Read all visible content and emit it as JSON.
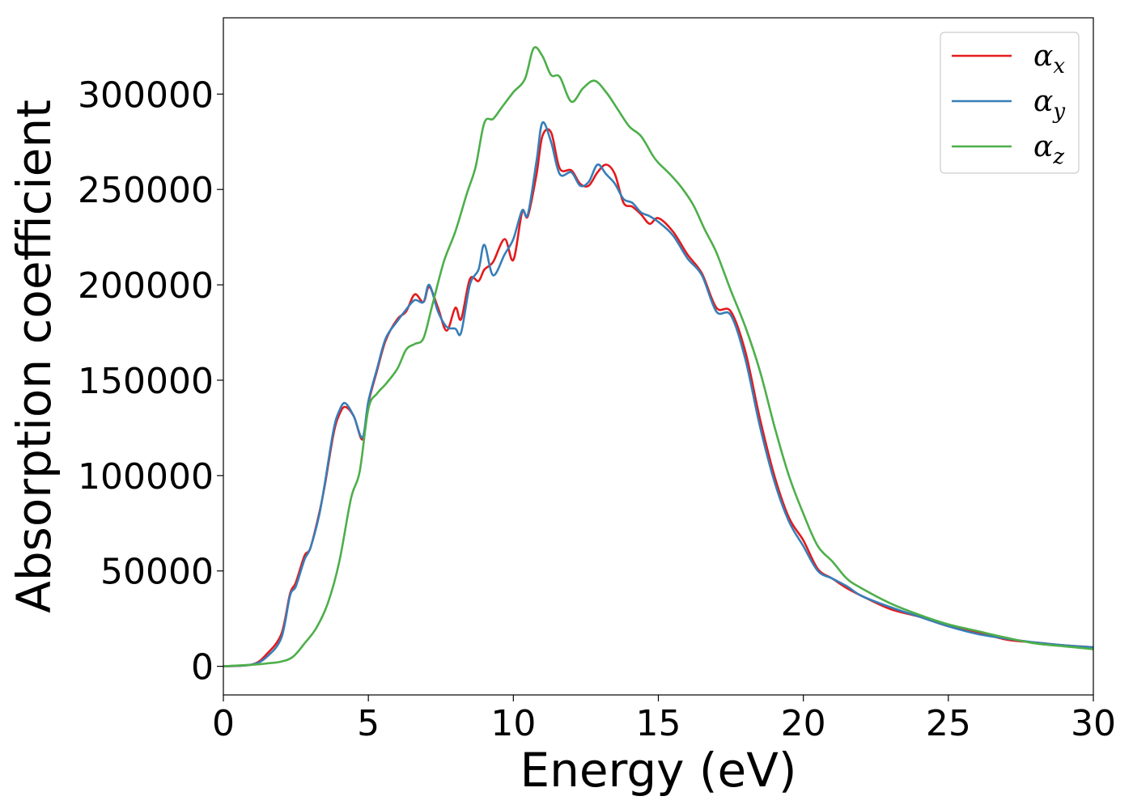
{
  "chart_data": {
    "type": "line",
    "title": "",
    "xlabel": "Energy (eV)",
    "ylabel": "Absorption coefficient",
    "xlim": [
      0,
      30
    ],
    "ylim": [
      -15000,
      340000
    ],
    "xticks": [
      0,
      5,
      10,
      15,
      20,
      25,
      30
    ],
    "xtick_labels": [
      "0",
      "5",
      "10",
      "15",
      "20",
      "25",
      "30"
    ],
    "yticks": [
      0,
      50000,
      100000,
      150000,
      200000,
      250000,
      300000
    ],
    "ytick_labels": [
      "0",
      "50000",
      "100000",
      "150000",
      "200000",
      "250000",
      "300000"
    ],
    "grid": false,
    "legend_position": "top-right",
    "series": [
      {
        "name": "αx",
        "symbol": "α",
        "subscript": "x",
        "color": "#e41a1c",
        "points": [
          [
            0,
            0
          ],
          [
            1,
            1000
          ],
          [
            1.5,
            6500
          ],
          [
            2,
            17000
          ],
          [
            2.3,
            38000
          ],
          [
            2.5,
            44000
          ],
          [
            2.8,
            58000
          ],
          [
            3,
            62000
          ],
          [
            3.3,
            80000
          ],
          [
            3.5,
            95000
          ],
          [
            3.8,
            122000
          ],
          [
            4,
            132000
          ],
          [
            4.2,
            136000
          ],
          [
            4.5,
            131000
          ],
          [
            4.8,
            119000
          ],
          [
            5,
            138000
          ],
          [
            5.3,
            155000
          ],
          [
            5.6,
            171000
          ],
          [
            6,
            182000
          ],
          [
            6.3,
            186000
          ],
          [
            6.6,
            195000
          ],
          [
            6.9,
            191000
          ],
          [
            7.1,
            199000
          ],
          [
            7.4,
            188000
          ],
          [
            7.7,
            176000
          ],
          [
            8,
            188000
          ],
          [
            8.2,
            182000
          ],
          [
            8.5,
            203000
          ],
          [
            8.8,
            202000
          ],
          [
            9,
            208000
          ],
          [
            9.3,
            212000
          ],
          [
            9.7,
            224000
          ],
          [
            10,
            213000
          ],
          [
            10.3,
            238000
          ],
          [
            10.5,
            236000
          ],
          [
            10.8,
            258000
          ],
          [
            11,
            278000
          ],
          [
            11.3,
            280000
          ],
          [
            11.6,
            261000
          ],
          [
            12,
            260000
          ],
          [
            12.3,
            253000
          ],
          [
            12.6,
            252000
          ],
          [
            12.9,
            259000
          ],
          [
            13.2,
            263000
          ],
          [
            13.5,
            258000
          ],
          [
            13.8,
            243000
          ],
          [
            14.1,
            241000
          ],
          [
            14.4,
            237000
          ],
          [
            14.7,
            232000
          ],
          [
            15,
            235000
          ],
          [
            15.5,
            228000
          ],
          [
            16,
            216000
          ],
          [
            16.5,
            206000
          ],
          [
            17,
            188000
          ],
          [
            17.5,
            186000
          ],
          [
            18,
            165000
          ],
          [
            18.5,
            130000
          ],
          [
            19,
            100000
          ],
          [
            19.5,
            78000
          ],
          [
            20,
            66000
          ],
          [
            20.5,
            51000
          ],
          [
            21,
            46000
          ],
          [
            21.5,
            41000
          ],
          [
            22,
            37000
          ],
          [
            23,
            30000
          ],
          [
            24,
            26000
          ],
          [
            25,
            21000
          ],
          [
            26,
            18000
          ],
          [
            27,
            14000
          ],
          [
            28,
            12500
          ],
          [
            29,
            11000
          ],
          [
            30,
            10000
          ]
        ]
      },
      {
        "name": "αy",
        "symbol": "α",
        "subscript": "y",
        "color": "#377eb8",
        "points": [
          [
            0,
            0
          ],
          [
            1,
            1000
          ],
          [
            1.5,
            5000
          ],
          [
            2,
            15000
          ],
          [
            2.3,
            37000
          ],
          [
            2.5,
            42000
          ],
          [
            2.8,
            56000
          ],
          [
            3,
            62000
          ],
          [
            3.3,
            79000
          ],
          [
            3.5,
            96000
          ],
          [
            3.8,
            124000
          ],
          [
            4,
            134000
          ],
          [
            4.2,
            138000
          ],
          [
            4.5,
            131000
          ],
          [
            4.8,
            120000
          ],
          [
            5,
            139000
          ],
          [
            5.3,
            156000
          ],
          [
            5.6,
            172000
          ],
          [
            6,
            181000
          ],
          [
            6.3,
            187000
          ],
          [
            6.6,
            192000
          ],
          [
            6.9,
            191000
          ],
          [
            7.1,
            200000
          ],
          [
            7.4,
            186000
          ],
          [
            7.7,
            178000
          ],
          [
            8,
            177000
          ],
          [
            8.2,
            175000
          ],
          [
            8.5,
            200000
          ],
          [
            8.8,
            208000
          ],
          [
            9,
            221000
          ],
          [
            9.3,
            205000
          ],
          [
            9.7,
            216000
          ],
          [
            10,
            224000
          ],
          [
            10.3,
            239000
          ],
          [
            10.5,
            237000
          ],
          [
            10.8,
            265000
          ],
          [
            11,
            285000
          ],
          [
            11.3,
            275000
          ],
          [
            11.6,
            258000
          ],
          [
            12,
            259000
          ],
          [
            12.3,
            252000
          ],
          [
            12.6,
            254000
          ],
          [
            12.9,
            263000
          ],
          [
            13.2,
            258000
          ],
          [
            13.5,
            253000
          ],
          [
            13.8,
            245000
          ],
          [
            14.1,
            243000
          ],
          [
            14.4,
            238000
          ],
          [
            14.7,
            236000
          ],
          [
            15,
            233000
          ],
          [
            15.5,
            226000
          ],
          [
            16,
            214000
          ],
          [
            16.5,
            205000
          ],
          [
            17,
            186000
          ],
          [
            17.5,
            184000
          ],
          [
            18,
            161000
          ],
          [
            18.5,
            126000
          ],
          [
            19,
            97000
          ],
          [
            19.5,
            76000
          ],
          [
            20,
            63000
          ],
          [
            20.5,
            50000
          ],
          [
            21,
            46000
          ],
          [
            21.5,
            42000
          ],
          [
            22,
            37000
          ],
          [
            23,
            31000
          ],
          [
            24,
            26000
          ],
          [
            25,
            21000
          ],
          [
            26,
            17000
          ],
          [
            27,
            14500
          ],
          [
            28,
            12500
          ],
          [
            29,
            11000
          ],
          [
            30,
            10000
          ]
        ]
      },
      {
        "name": "αz",
        "symbol": "α",
        "subscript": "z",
        "color": "#4daf4a",
        "points": [
          [
            0,
            0
          ],
          [
            1,
            800
          ],
          [
            1.5,
            1500
          ],
          [
            2,
            2500
          ],
          [
            2.4,
            5000
          ],
          [
            2.8,
            12000
          ],
          [
            3.2,
            20000
          ],
          [
            3.6,
            33000
          ],
          [
            4,
            55000
          ],
          [
            4.4,
            88000
          ],
          [
            4.7,
            102000
          ],
          [
            5,
            135000
          ],
          [
            5.3,
            143000
          ],
          [
            5.6,
            148000
          ],
          [
            6,
            156000
          ],
          [
            6.3,
            166000
          ],
          [
            6.6,
            169000
          ],
          [
            6.9,
            172000
          ],
          [
            7.2,
            189000
          ],
          [
            7.6,
            212000
          ],
          [
            8,
            228000
          ],
          [
            8.4,
            248000
          ],
          [
            8.7,
            262000
          ],
          [
            9,
            285000
          ],
          [
            9.3,
            287000
          ],
          [
            9.6,
            293000
          ],
          [
            10,
            301000
          ],
          [
            10.4,
            308000
          ],
          [
            10.7,
            324000
          ],
          [
            11,
            320000
          ],
          [
            11.3,
            310000
          ],
          [
            11.6,
            309000
          ],
          [
            12,
            296000
          ],
          [
            12.4,
            303000
          ],
          [
            12.8,
            307000
          ],
          [
            13.2,
            301000
          ],
          [
            13.6,
            292000
          ],
          [
            14,
            283000
          ],
          [
            14.4,
            278000
          ],
          [
            14.8,
            268000
          ],
          [
            15,
            264000
          ],
          [
            15.4,
            258000
          ],
          [
            15.8,
            251000
          ],
          [
            16.2,
            242000
          ],
          [
            16.6,
            229000
          ],
          [
            17,
            217000
          ],
          [
            17.5,
            197000
          ],
          [
            18,
            178000
          ],
          [
            18.5,
            155000
          ],
          [
            19,
            126000
          ],
          [
            19.5,
            100000
          ],
          [
            20,
            80000
          ],
          [
            20.5,
            63000
          ],
          [
            21,
            55000
          ],
          [
            21.5,
            46000
          ],
          [
            22,
            41000
          ],
          [
            23,
            33000
          ],
          [
            24,
            27000
          ],
          [
            25,
            22000
          ],
          [
            26,
            18500
          ],
          [
            27,
            15000
          ],
          [
            28,
            12000
          ],
          [
            29,
            10500
          ],
          [
            30,
            9000
          ]
        ]
      }
    ]
  }
}
